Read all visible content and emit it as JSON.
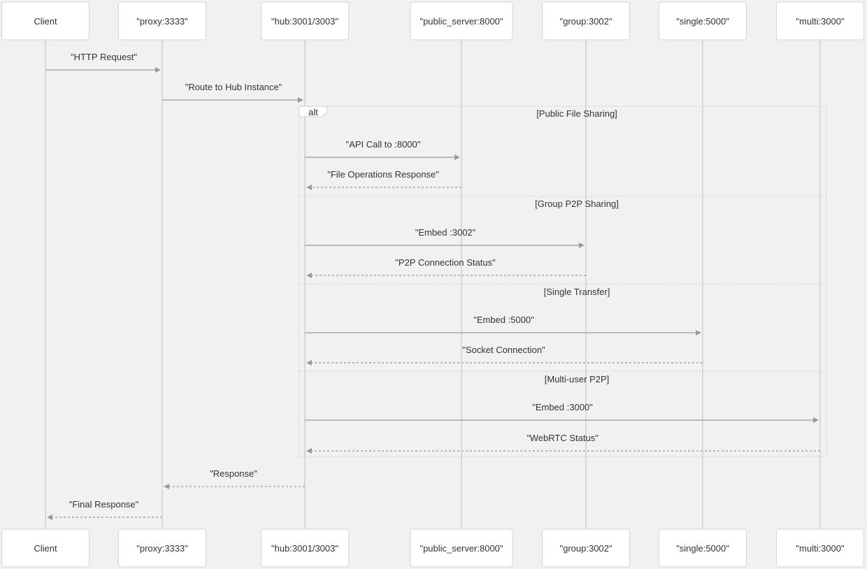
{
  "actors": [
    {
      "id": "client",
      "label": "Client"
    },
    {
      "id": "proxy",
      "label": "\"proxy:3333\""
    },
    {
      "id": "hub",
      "label": "\"hub:3001/3003\""
    },
    {
      "id": "public_server",
      "label": "\"public_server:8000\""
    },
    {
      "id": "group",
      "label": "\"group:3002\""
    },
    {
      "id": "single",
      "label": "\"single:5000\""
    },
    {
      "id": "multi",
      "label": "\"multi:3000\""
    }
  ],
  "alt_frame": {
    "label": "alt",
    "sections": [
      {
        "label": "[Public File Sharing]"
      },
      {
        "label": "[Group P2P Sharing]"
      },
      {
        "label": "[Single Transfer]"
      },
      {
        "label": "[Multi-user P2P]"
      }
    ]
  },
  "messages": [
    {
      "from": "client",
      "to": "proxy",
      "label": "\"HTTP Request\"",
      "style": "solid"
    },
    {
      "from": "proxy",
      "to": "hub",
      "label": "\"Route to Hub Instance\"",
      "style": "solid"
    },
    {
      "from": "hub",
      "to": "public_server",
      "label": "\"API Call to :8000\"",
      "style": "solid"
    },
    {
      "from": "public_server",
      "to": "hub",
      "label": "\"File Operations Response\"",
      "style": "dashed"
    },
    {
      "from": "hub",
      "to": "group",
      "label": "\"Embed :3002\"",
      "style": "solid"
    },
    {
      "from": "group",
      "to": "hub",
      "label": "\"P2P Connection Status\"",
      "style": "dashed"
    },
    {
      "from": "hub",
      "to": "single",
      "label": "\"Embed :5000\"",
      "style": "solid"
    },
    {
      "from": "single",
      "to": "hub",
      "label": "\"Socket Connection\"",
      "style": "dashed"
    },
    {
      "from": "hub",
      "to": "multi",
      "label": "\"Embed :3000\"",
      "style": "solid"
    },
    {
      "from": "multi",
      "to": "hub",
      "label": "\"WebRTC Status\"",
      "style": "dashed"
    },
    {
      "from": "hub",
      "to": "proxy",
      "label": "\"Response\"",
      "style": "dashed"
    },
    {
      "from": "proxy",
      "to": "client",
      "label": "\"Final Response\"",
      "style": "dashed"
    }
  ]
}
